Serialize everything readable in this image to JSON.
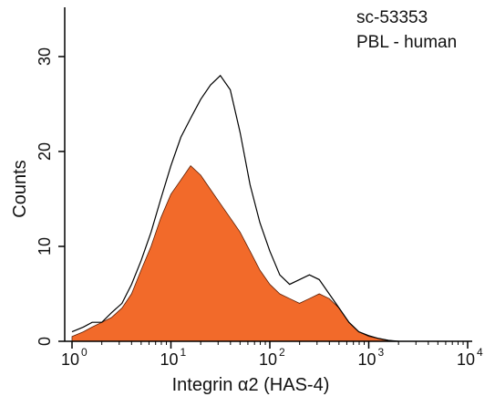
{
  "chart_data": {
    "type": "histogram",
    "title": "",
    "annotations": [
      "sc-53353",
      "PBL - human"
    ],
    "xlabel": "Integrin α2 (HAS-4)",
    "ylabel": "Counts",
    "x_scale": "log",
    "xlim": [
      1,
      10000
    ],
    "ylim": [
      0,
      35
    ],
    "x_ticks": [
      {
        "base": "10",
        "exp": "0",
        "value": 1
      },
      {
        "base": "10",
        "exp": "1",
        "value": 10
      },
      {
        "base": "10",
        "exp": "2",
        "value": 100
      },
      {
        "base": "10",
        "exp": "3",
        "value": 1000
      },
      {
        "base": "10",
        "exp": "4",
        "value": 10000
      }
    ],
    "y_ticks": [
      0,
      10,
      20,
      30
    ],
    "colors": {
      "filled": "#f26a2a",
      "outline": "#000000"
    },
    "series": [
      {
        "style": "filled",
        "x": [
          1.0,
          1.3,
          1.6,
          2.0,
          2.5,
          3.2,
          4.0,
          5.0,
          6.3,
          7.9,
          10.0,
          12.6,
          15.8,
          20.0,
          25.1,
          31.6,
          39.8,
          50.1,
          63.1,
          79.4,
          100.0,
          125.9,
          158.5,
          199.5,
          251.2,
          316.2,
          398.1,
          501.2,
          631.0,
          794.3,
          1000.0,
          1258.9,
          1584.9,
          1995.3
        ],
        "y": [
          0.5,
          1.0,
          1.5,
          2.0,
          2.5,
          3.5,
          5.0,
          7.5,
          10.0,
          13.0,
          15.5,
          17.0,
          18.5,
          17.5,
          16.0,
          14.5,
          13.0,
          11.5,
          9.5,
          7.5,
          6.0,
          5.0,
          4.5,
          4.0,
          4.5,
          5.0,
          4.5,
          3.5,
          2.0,
          1.0,
          0.5,
          0.3,
          0.1,
          0.0
        ]
      },
      {
        "style": "outline",
        "x": [
          1.0,
          1.3,
          1.6,
          2.0,
          2.5,
          3.2,
          4.0,
          5.0,
          6.3,
          7.9,
          10.0,
          12.6,
          15.8,
          20.0,
          25.1,
          31.6,
          39.8,
          50.1,
          63.1,
          79.4,
          100.0,
          125.9,
          158.5,
          199.5,
          251.2,
          316.2,
          398.1,
          501.2,
          631.0,
          794.3,
          1000.0,
          1258.9,
          1584.9,
          1995.3
        ],
        "y": [
          1.0,
          1.5,
          2.0,
          2.0,
          3.0,
          4.0,
          6.0,
          8.5,
          11.5,
          15.0,
          18.5,
          21.5,
          23.5,
          25.5,
          27.0,
          28.0,
          26.5,
          22.0,
          16.5,
          12.5,
          9.5,
          7.0,
          6.0,
          6.5,
          7.0,
          6.5,
          5.0,
          3.5,
          2.0,
          1.0,
          0.6,
          0.3,
          0.1,
          0.0
        ]
      }
    ]
  }
}
